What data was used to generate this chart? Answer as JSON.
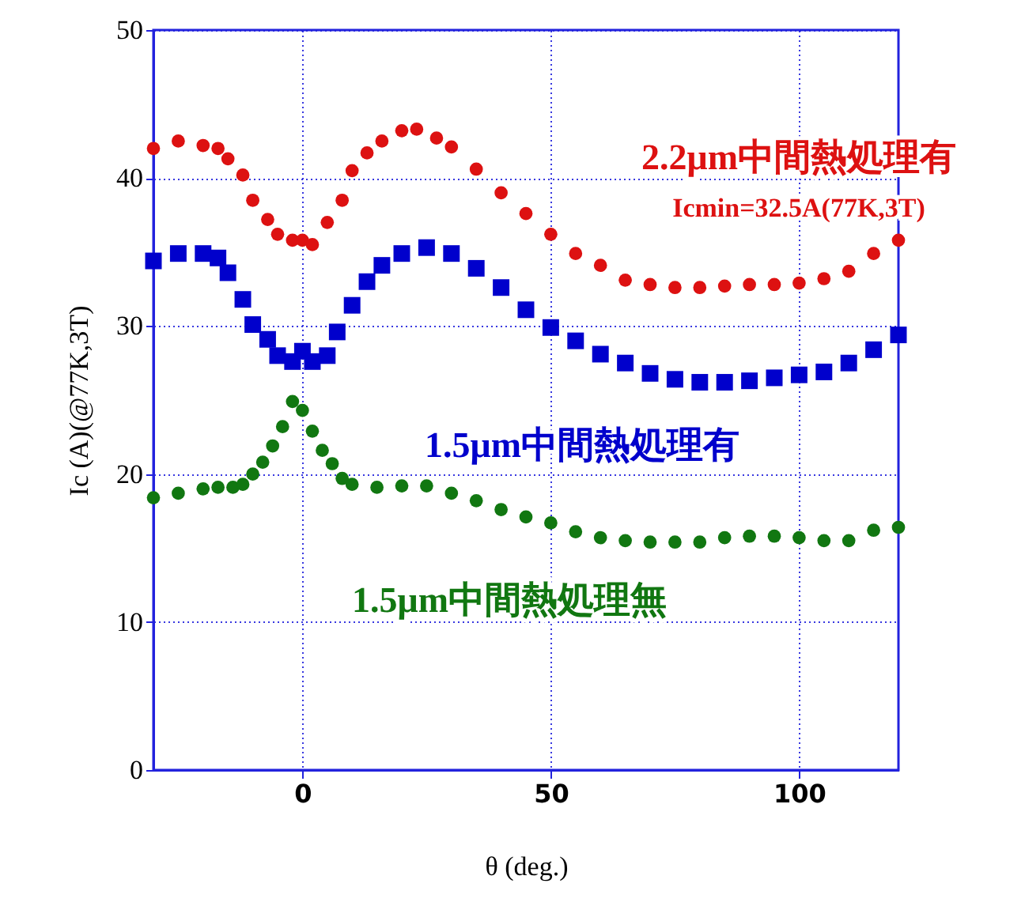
{
  "chart_data": {
    "type": "scatter",
    "xlabel": "θ (deg.)",
    "ylabel": "Ic (A)(@77K,3T)",
    "xlim": [
      -30,
      120
    ],
    "xticks": [
      0,
      50,
      100
    ],
    "ylim": [
      0,
      50
    ],
    "yticks": [
      0,
      10,
      20,
      30,
      40,
      50
    ],
    "grid": true,
    "annotations": [
      "Icmin=32.5A(77K,3T)"
    ],
    "series": [
      {
        "name": "2.2μm中間熱処理有",
        "color": "#dd1111",
        "marker": "circle",
        "x": [
          -30,
          -25,
          -20,
          -17,
          -15,
          -12,
          -10,
          -7,
          -5,
          -2,
          0,
          2,
          5,
          8,
          10,
          13,
          16,
          20,
          23,
          27,
          30,
          35,
          40,
          45,
          50,
          55,
          60,
          65,
          70,
          75,
          80,
          85,
          90,
          95,
          100,
          105,
          110,
          115,
          120
        ],
        "values": [
          42.0,
          42.5,
          42.2,
          42.0,
          41.3,
          40.2,
          38.5,
          37.2,
          36.2,
          35.8,
          35.8,
          35.5,
          37.0,
          38.5,
          40.5,
          41.7,
          42.5,
          43.2,
          43.3,
          42.7,
          42.1,
          40.6,
          39.0,
          37.6,
          36.2,
          34.9,
          34.1,
          33.1,
          32.8,
          32.6,
          32.6,
          32.7,
          32.8,
          32.8,
          32.9,
          33.2,
          33.7,
          34.9,
          35.8
        ]
      },
      {
        "name": "1.5μm中間熱処理有",
        "color": "#0000cc",
        "marker": "square",
        "x": [
          -30,
          -25,
          -20,
          -17,
          -15,
          -12,
          -10,
          -7,
          -5,
          -2,
          0,
          2,
          5,
          7,
          10,
          13,
          16,
          20,
          25,
          30,
          35,
          40,
          45,
          50,
          55,
          60,
          65,
          70,
          75,
          80,
          85,
          90,
          95,
          100,
          105,
          110,
          115,
          120
        ],
        "values": [
          34.4,
          34.9,
          34.9,
          34.6,
          33.6,
          31.8,
          30.1,
          29.1,
          28.0,
          27.6,
          28.3,
          27.6,
          28.0,
          29.6,
          31.4,
          33.0,
          34.1,
          34.9,
          35.3,
          34.9,
          33.9,
          32.6,
          31.1,
          29.9,
          29.0,
          28.1,
          27.5,
          26.8,
          26.4,
          26.2,
          26.2,
          26.3,
          26.5,
          26.7,
          26.9,
          27.5,
          28.4,
          29.4
        ]
      },
      {
        "name": "1.5μm中間熱処理無",
        "color": "#117711",
        "marker": "circle",
        "x": [
          -30,
          -25,
          -20,
          -17,
          -14,
          -12,
          -10,
          -8,
          -6,
          -4,
          -2,
          0,
          2,
          4,
          6,
          8,
          10,
          15,
          20,
          25,
          30,
          35,
          40,
          45,
          50,
          55,
          60,
          65,
          70,
          75,
          80,
          85,
          90,
          95,
          100,
          105,
          110,
          115,
          120
        ],
        "values": [
          18.4,
          18.7,
          19.0,
          19.1,
          19.1,
          19.3,
          20.0,
          20.8,
          21.9,
          23.2,
          24.9,
          24.3,
          22.9,
          21.6,
          20.7,
          19.7,
          19.3,
          19.1,
          19.2,
          19.2,
          18.7,
          18.2,
          17.6,
          17.1,
          16.7,
          16.1,
          15.7,
          15.5,
          15.4,
          15.4,
          15.4,
          15.7,
          15.8,
          15.8,
          15.7,
          15.5,
          15.5,
          16.2,
          16.4
        ]
      }
    ]
  }
}
